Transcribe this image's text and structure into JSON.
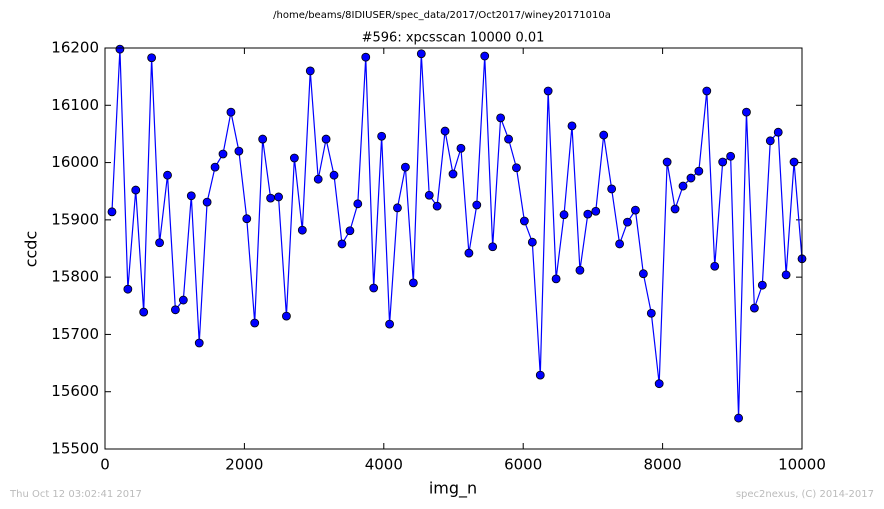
{
  "chart_data": {
    "type": "line",
    "suptitle": "/home/beams/8IDIUSER/spec_data/2017/Oct2017/winey20171010a",
    "title": "#596: xpcsscan 10000 0.01",
    "xlabel": "img_n",
    "ylabel": "ccdc",
    "footer_left": "Thu Oct 12 03:02:41 2017",
    "footer_right": "spec2nexus, (C) 2014-2017",
    "xlim": [
      0,
      10000
    ],
    "xticks": [
      0,
      2000,
      4000,
      6000,
      8000,
      10000
    ],
    "ylim": [
      15500,
      16200
    ],
    "yticks": [
      15500,
      15600,
      15700,
      15800,
      15900,
      16000,
      16100,
      16200
    ],
    "x": [
      100,
      214,
      328,
      441,
      555,
      669,
      783,
      897,
      1010,
      1124,
      1238,
      1352,
      1465,
      1579,
      1693,
      1807,
      1921,
      2034,
      2148,
      2262,
      2376,
      2490,
      2603,
      2717,
      2831,
      2945,
      3059,
      3172,
      3286,
      3400,
      3514,
      3627,
      3741,
      3855,
      3969,
      4083,
      4196,
      4310,
      4424,
      4538,
      4652,
      4765,
      4879,
      4993,
      5107,
      5221,
      5334,
      5448,
      5562,
      5676,
      5790,
      5903,
      6017,
      6131,
      6245,
      6358,
      6472,
      6586,
      6700,
      6814,
      6927,
      7041,
      7155,
      7269,
      7383,
      7496,
      7610,
      7724,
      7838,
      7951,
      8065,
      8179,
      8293,
      8407,
      8520,
      8634,
      8748,
      8862,
      8976,
      9090,
      9203,
      9317,
      9431,
      9545,
      9659,
      9772,
      9886,
      10000
    ],
    "series": [
      {
        "color": "#0000ff",
        "values": [
          15914,
          16198,
          15779,
          15952,
          15739,
          16183,
          15860,
          15978,
          15743,
          15760,
          15942,
          15685,
          15931,
          15992,
          16015,
          16088,
          16020,
          15902,
          15720,
          16041,
          15938,
          15940,
          15732,
          16008,
          15882,
          16160,
          15971,
          16041,
          15978,
          15858,
          15881,
          15928,
          16184,
          15781,
          16046,
          15718,
          15921,
          15992,
          15790,
          16190,
          15943,
          15924,
          16055,
          15980,
          16025,
          15842,
          15926,
          16186,
          15853,
          16078,
          16041,
          15991,
          15898,
          15861,
          15629,
          16125,
          15797,
          15909,
          16064,
          15812,
          15910,
          15915,
          16048,
          15954,
          15858,
          15896,
          15917,
          15806,
          15737,
          15614,
          16001,
          15919,
          15959,
          15973,
          15985,
          16125,
          15819,
          16001,
          16011,
          15554,
          16088,
          15746,
          15786,
          16038,
          16053,
          15804,
          16001,
          15832
        ]
      }
    ]
  }
}
